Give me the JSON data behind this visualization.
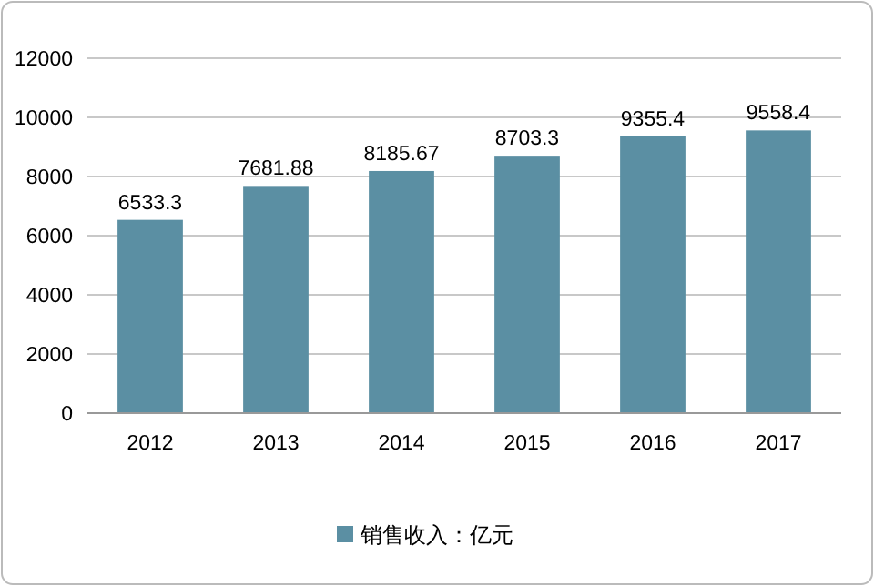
{
  "chart_data": {
    "type": "bar",
    "categories": [
      "2012",
      "2013",
      "2014",
      "2015",
      "2016",
      "2017"
    ],
    "series": [
      {
        "name": "销售收入：亿元",
        "color": "#5b8fa3",
        "values": [
          6533.3,
          7681.88,
          8185.67,
          8703.3,
          9355.4,
          9558.4
        ]
      }
    ],
    "ylim": [
      0,
      12000
    ],
    "yticks": [
      0,
      2000,
      4000,
      6000,
      8000,
      10000,
      12000
    ],
    "grid": "y",
    "legend": "bottom",
    "data_labels": true
  }
}
